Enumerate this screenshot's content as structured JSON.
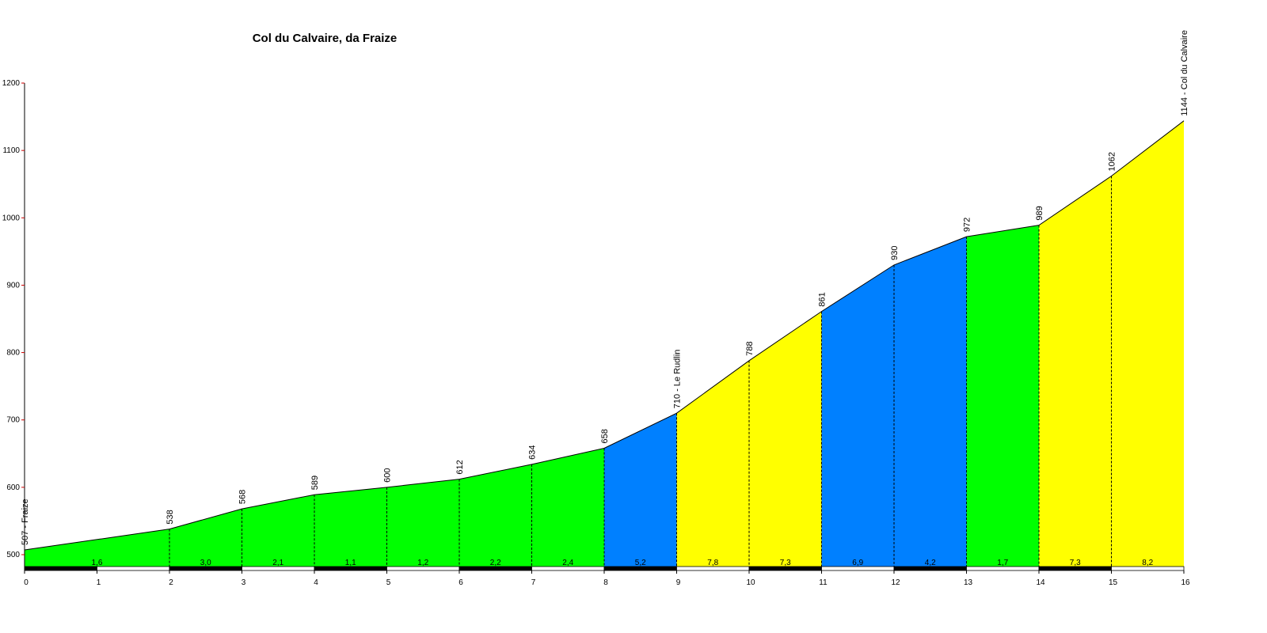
{
  "chart_data": {
    "type": "area",
    "title": "Col du Calvaire, da Fraize",
    "x": [
      0,
      2,
      3,
      4,
      5,
      6,
      7,
      8,
      9,
      10,
      11,
      12,
      13,
      14,
      15,
      16
    ],
    "values": [
      507,
      538,
      568,
      589,
      600,
      612,
      634,
      658,
      710,
      788,
      861,
      930,
      972,
      989,
      1062,
      1144
    ],
    "value_labels": [
      "507 - Fraize",
      "538",
      "568",
      "589",
      "600",
      "612",
      "634",
      "658",
      "710 - Le Rudlin",
      "788",
      "861",
      "930",
      "972",
      "989",
      "1062",
      "1144 - Col du Calvaire"
    ],
    "gradients": [
      1.6,
      3.0,
      2.1,
      1.1,
      1.2,
      2.2,
      2.4,
      5.2,
      7.8,
      7.3,
      6.9,
      4.2,
      1.7,
      7.3,
      8.2
    ],
    "gradient_labels": [
      "1,6",
      "3,0",
      "2,1",
      "1,1",
      "1,2",
      "2,2",
      "2,4",
      "5,2",
      "7,8",
      "7,3",
      "6,9",
      "4,2",
      "1,7",
      "7,3",
      "8,2"
    ],
    "segment_colors": [
      "#00ff00",
      "#00ff00",
      "#00ff00",
      "#00ff00",
      "#00ff00",
      "#00ff00",
      "#00ff00",
      "#0080ff",
      "#ffff00",
      "#ffff00",
      "#0080ff",
      "#0080ff",
      "#00ff00",
      "#ffff00",
      "#ffff00"
    ],
    "xlim": [
      0,
      16
    ],
    "xticks": [
      0,
      1,
      2,
      3,
      4,
      5,
      6,
      7,
      8,
      9,
      10,
      11,
      12,
      13,
      14,
      15,
      16
    ],
    "ylim": [
      500,
      1200
    ],
    "yticks": [
      500,
      600,
      700,
      800,
      900,
      1000,
      1100,
      1200
    ]
  }
}
